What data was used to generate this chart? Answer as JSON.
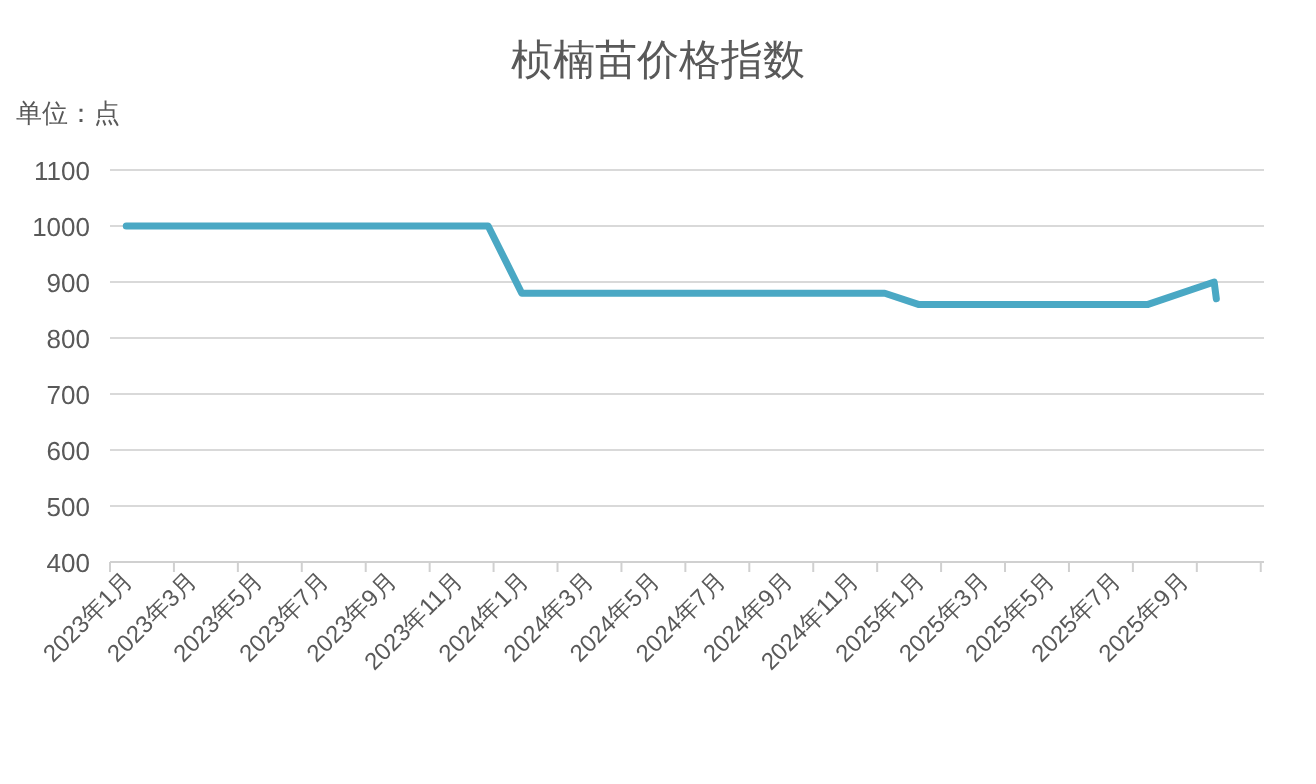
{
  "chart_data": {
    "type": "line",
    "title": "桢楠苗价格指数",
    "ylabel": "单位：点",
    "x": [
      "2023-01",
      "2023-02",
      "2023-03",
      "2023-04",
      "2023-05",
      "2023-06",
      "2023-07",
      "2023-08",
      "2023-09",
      "2023-10",
      "2023-11",
      "2023-12",
      "2024-01",
      "2024-02",
      "2024-03",
      "2024-04",
      "2024-05",
      "2024-06",
      "2024-07",
      "2024-08",
      "2024-09",
      "2024-10",
      "2024-11",
      "2024-12",
      "2025-01",
      "2025-02",
      "2025-03",
      "2025-04",
      "2025-05",
      "2025-06",
      "2025-07",
      "2025-08",
      "2025-10-01",
      "2025-10-03"
    ],
    "series": [
      {
        "color": "#4aa8c4",
        "values": [
          1000,
          1000,
          1000,
          1000,
          1000,
          1000,
          1000,
          1000,
          1000,
          1000,
          1000,
          1000,
          880,
          880,
          880,
          880,
          880,
          880,
          880,
          880,
          880,
          880,
          880,
          880,
          860,
          860,
          860,
          860,
          860,
          860,
          860,
          860,
          900,
          870
        ]
      }
    ],
    "xlim": [
      "2022-12-17",
      "2025-11-16"
    ],
    "xticks": [
      {
        "value": "2023-01",
        "label": "2023年1月"
      },
      {
        "value": "2023-03",
        "label": "2023年3月"
      },
      {
        "value": "2023-05",
        "label": "2023年5月"
      },
      {
        "value": "2023-07",
        "label": "2023年7月"
      },
      {
        "value": "2023-09",
        "label": "2023年9月"
      },
      {
        "value": "2023-11",
        "label": "2023年11月"
      },
      {
        "value": "2024-01",
        "label": "2024年1月"
      },
      {
        "value": "2024-03",
        "label": "2024年3月"
      },
      {
        "value": "2024-05",
        "label": "2024年5月"
      },
      {
        "value": "2024-07",
        "label": "2024年7月"
      },
      {
        "value": "2024-09",
        "label": "2024年9月"
      },
      {
        "value": "2024-11",
        "label": "2024年11月"
      },
      {
        "value": "2025-01",
        "label": "2025年1月"
      },
      {
        "value": "2025-03",
        "label": "2025年3月"
      },
      {
        "value": "2025-05",
        "label": "2025年5月"
      },
      {
        "value": "2025-07",
        "label": "2025年7月"
      },
      {
        "value": "2025-09",
        "label": "2025年9月"
      }
    ],
    "ylim": [
      400,
      1100
    ],
    "yticks": [
      400,
      500,
      600,
      700,
      800,
      900,
      1000,
      1100
    ],
    "grid": "y",
    "marker": "none",
    "line_style": "solid"
  }
}
